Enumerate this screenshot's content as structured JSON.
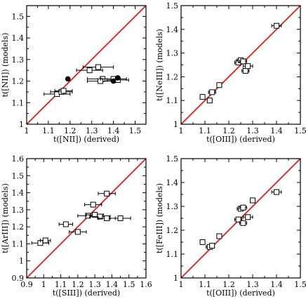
{
  "figure": {
    "colors": {
      "identity_line": "#e01c1c",
      "axis": "#000000",
      "marker": "#000000"
    }
  },
  "chart_data": [
    {
      "type": "scatter",
      "title": "",
      "xlabel": "t([NII]) (derived)",
      "ylabel": "t([NII]) (models)",
      "xlim": [
        1.0,
        1.55
      ],
      "ylim": [
        1.0,
        1.55
      ],
      "xticks": [
        "1",
        "1.1",
        "1.2",
        "1.3",
        "1.4",
        "1.5"
      ],
      "yticks": [
        "1",
        "1.1",
        "1.2",
        "1.3",
        "1.4",
        "1.5"
      ],
      "grid": false,
      "identity_line": true,
      "series": [
        {
          "marker": "open-square",
          "points": [
            {
              "x": 1.14,
              "y": 1.14,
              "xerr": 0.06
            },
            {
              "x": 1.16,
              "y": 1.15,
              "xerr": 0.05
            },
            {
              "x": 1.17,
              "y": 1.155,
              "xerr": 0.04
            },
            {
              "x": 1.29,
              "y": 1.25,
              "xerr": 0.06
            },
            {
              "x": 1.33,
              "y": 1.265,
              "xerr": 0.07
            },
            {
              "x": 1.35,
              "y": 1.21,
              "xerr": 0.07
            },
            {
              "x": 1.34,
              "y": 1.2,
              "xerr": 0.06
            },
            {
              "x": 1.4,
              "y": 1.21,
              "xerr": 0.06
            },
            {
              "x": 1.42,
              "y": 1.205,
              "xerr": 0.05
            }
          ]
        },
        {
          "marker": "filled-circle",
          "points": [
            {
              "x": 1.19,
              "y": 1.21,
              "xerr": 0.0
            },
            {
              "x": 1.4,
              "y": 1.2,
              "xerr": 0.0
            },
            {
              "x": 1.42,
              "y": 1.215,
              "xerr": 0.0
            }
          ]
        }
      ]
    },
    {
      "type": "scatter",
      "title": "",
      "xlabel": "t([OIII]) (derived)",
      "ylabel": "t([NeIII]) (models)",
      "xlim": [
        1.0,
        1.5
      ],
      "ylim": [
        1.0,
        1.5
      ],
      "xticks": [
        "1",
        "1.1",
        "1.2",
        "1.3",
        "1.4",
        "1.5"
      ],
      "yticks": [
        "1",
        "1.1",
        "1.2",
        "1.3",
        "1.4",
        "1.5"
      ],
      "grid": false,
      "identity_line": true,
      "series": [
        {
          "marker": "open-square",
          "points": [
            {
              "x": 1.09,
              "y": 1.115,
              "xerr": 0.01
            },
            {
              "x": 1.12,
              "y": 1.1,
              "xerr": 0.01
            },
            {
              "x": 1.13,
              "y": 1.135,
              "xerr": 0.015
            },
            {
              "x": 1.16,
              "y": 1.165,
              "xerr": 0.01
            },
            {
              "x": 1.24,
              "y": 1.26,
              "xerr": 0.015
            },
            {
              "x": 1.25,
              "y": 1.27,
              "xerr": 0.015
            },
            {
              "x": 1.26,
              "y": 1.265,
              "xerr": 0.015
            },
            {
              "x": 1.27,
              "y": 1.225,
              "xerr": 0.015
            },
            {
              "x": 1.28,
              "y": 1.245,
              "xerr": 0.02
            },
            {
              "x": 1.4,
              "y": 1.415,
              "xerr": 0.02
            }
          ]
        }
      ]
    },
    {
      "type": "scatter",
      "title": "",
      "xlabel": "t([SIII]) (derived)",
      "ylabel": "t([ArIII]) (models)",
      "xlim": [
        0.9,
        1.6
      ],
      "ylim": [
        0.9,
        1.6
      ],
      "xticks": [
        "0.9",
        "1",
        "1.1",
        "1.2",
        "1.3",
        "1.4",
        "1.5",
        "1.6"
      ],
      "yticks": [
        "0.9",
        "1",
        "1.1",
        "1.2",
        "1.3",
        "1.4",
        "1.5",
        "1.6"
      ],
      "grid": false,
      "identity_line": true,
      "series": [
        {
          "marker": "open-square",
          "points": [
            {
              "x": 0.98,
              "y": 1.105,
              "xerr": 0.05
            },
            {
              "x": 1.01,
              "y": 1.12,
              "xerr": 0.03
            },
            {
              "x": 1.13,
              "y": 1.215,
              "xerr": 0.04
            },
            {
              "x": 1.2,
              "y": 1.17,
              "xerr": 0.05
            },
            {
              "x": 1.26,
              "y": 1.265,
              "xerr": 0.06
            },
            {
              "x": 1.29,
              "y": 1.33,
              "xerr": 0.05
            },
            {
              "x": 1.3,
              "y": 1.27,
              "xerr": 0.05
            },
            {
              "x": 1.33,
              "y": 1.26,
              "xerr": 0.06
            },
            {
              "x": 1.37,
              "y": 1.395,
              "xerr": 0.05
            },
            {
              "x": 1.37,
              "y": 1.25,
              "xerr": 0.05
            },
            {
              "x": 1.45,
              "y": 1.25,
              "xerr": 0.06
            }
          ]
        }
      ]
    },
    {
      "type": "scatter",
      "title": "",
      "xlabel": "t([OIII]) (derived)",
      "ylabel": "t([FeIII]) (models)",
      "xlim": [
        1.0,
        1.5
      ],
      "ylim": [
        1.0,
        1.5
      ],
      "xticks": [
        "1",
        "1.1",
        "1.2",
        "1.3",
        "1.4",
        "1.5"
      ],
      "yticks": [
        "1",
        "1.1",
        "1.2",
        "1.3",
        "1.4",
        "1.5"
      ],
      "grid": false,
      "identity_line": true,
      "series": [
        {
          "marker": "open-square",
          "points": [
            {
              "x": 1.09,
              "y": 1.15,
              "xerr": 0.01
            },
            {
              "x": 1.12,
              "y": 1.13,
              "xerr": 0.015
            },
            {
              "x": 1.13,
              "y": 1.135,
              "xerr": 0.01
            },
            {
              "x": 1.16,
              "y": 1.175,
              "xerr": 0.01
            },
            {
              "x": 1.24,
              "y": 1.245,
              "xerr": 0.015
            },
            {
              "x": 1.25,
              "y": 1.29,
              "xerr": 0.015
            },
            {
              "x": 1.26,
              "y": 1.295,
              "xerr": 0.015
            },
            {
              "x": 1.26,
              "y": 1.23,
              "xerr": 0.015
            },
            {
              "x": 1.28,
              "y": 1.255,
              "xerr": 0.02
            },
            {
              "x": 1.3,
              "y": 1.325,
              "xerr": 0.01
            },
            {
              "x": 1.4,
              "y": 1.36,
              "xerr": 0.02
            }
          ]
        }
      ]
    }
  ]
}
